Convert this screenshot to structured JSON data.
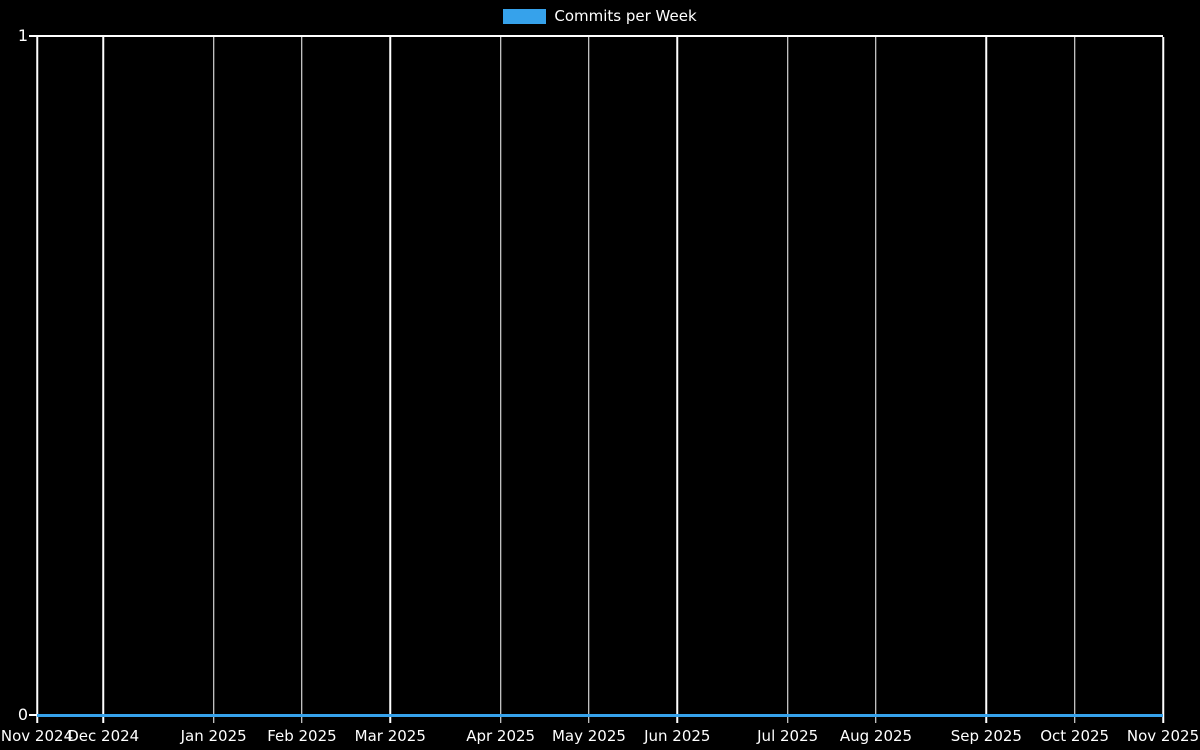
{
  "legend": {
    "label": "Commits per Week",
    "swatch_color": "#36a2eb"
  },
  "chart_data": {
    "type": "line",
    "title": "",
    "legend_position": "top",
    "series": [
      {
        "name": "Commits per Week",
        "color": "#36a2eb",
        "values": [
          0,
          0,
          0,
          0,
          0,
          0,
          0,
          0,
          0,
          0,
          0,
          0,
          0,
          0,
          0,
          0,
          0,
          0,
          0,
          0,
          0,
          0,
          0,
          0,
          0,
          0,
          0,
          0,
          0,
          0,
          0,
          0,
          0,
          0,
          0,
          0,
          0,
          0,
          0,
          0,
          0,
          0,
          0,
          0,
          0,
          0,
          0,
          0,
          0,
          0,
          0,
          0
        ]
      }
    ],
    "x_unit": "week",
    "total_weeks": 51,
    "x_ticks": [
      {
        "label": "Nov 2024",
        "week": 0
      },
      {
        "label": "Dec 2024",
        "week": 3
      },
      {
        "label": "Jan 2025",
        "week": 8
      },
      {
        "label": "Feb 2025",
        "week": 12
      },
      {
        "label": "Mar 2025",
        "week": 16
      },
      {
        "label": "Apr 2025",
        "week": 21
      },
      {
        "label": "May 2025",
        "week": 25
      },
      {
        "label": "Jun 2025",
        "week": 29
      },
      {
        "label": "Jul 2025",
        "week": 34
      },
      {
        "label": "Aug 2025",
        "week": 38
      },
      {
        "label": "Sep 2025",
        "week": 43
      },
      {
        "label": "Oct 2025",
        "week": 47
      },
      {
        "label": "Nov 2025",
        "week": 51
      }
    ],
    "y_ticks": [
      "1",
      "0"
    ],
    "ylim": [
      0,
      1
    ],
    "grid": "vertical-only",
    "colors": {
      "background": "#000000",
      "grid": "#ffffff",
      "text": "#ffffff"
    }
  }
}
